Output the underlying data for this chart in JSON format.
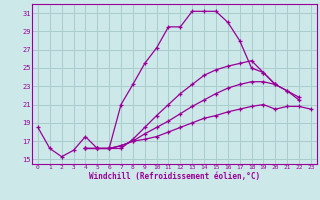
{
  "xlabel": "Windchill (Refroidissement éolien,°C)",
  "background_color": "#cce8e8",
  "line_color": "#990099",
  "grid_color": "#aacccc",
  "xlim": [
    -0.5,
    23.5
  ],
  "ylim": [
    14.5,
    32.0
  ],
  "yticks": [
    15,
    17,
    19,
    21,
    23,
    25,
    27,
    29,
    31
  ],
  "xticks": [
    0,
    1,
    2,
    3,
    4,
    5,
    6,
    7,
    8,
    9,
    10,
    11,
    12,
    13,
    14,
    15,
    16,
    17,
    18,
    19,
    20,
    21,
    22,
    23
  ],
  "series": [
    {
      "x": [
        0,
        1,
        2,
        3,
        4,
        5,
        6,
        7,
        8,
        9,
        10,
        11,
        12,
        13,
        14,
        15,
        16,
        17,
        18,
        19,
        20,
        21,
        22
      ],
      "y": [
        18.5,
        16.2,
        15.3,
        16.0,
        17.5,
        16.2,
        16.2,
        21.0,
        23.2,
        25.5,
        27.2,
        29.5,
        29.5,
        31.2,
        31.2,
        31.2,
        30.0,
        28.0,
        25.0,
        24.5,
        23.2,
        22.5,
        21.5
      ]
    },
    {
      "x": [
        4,
        5,
        6,
        7,
        8,
        9,
        10,
        11,
        12,
        13,
        14,
        15,
        16,
        17,
        18,
        19,
        20
      ],
      "y": [
        16.2,
        16.2,
        16.2,
        16.2,
        17.2,
        18.5,
        19.8,
        21.0,
        22.2,
        23.2,
        24.2,
        24.8,
        25.2,
        25.5,
        25.8,
        24.5,
        23.2
      ]
    },
    {
      "x": [
        4,
        5,
        6,
        7,
        8,
        9,
        10,
        11,
        12,
        13,
        14,
        15,
        16,
        17,
        18,
        19,
        20,
        21,
        22
      ],
      "y": [
        16.2,
        16.2,
        16.2,
        16.5,
        17.0,
        17.8,
        18.5,
        19.2,
        20.0,
        20.8,
        21.5,
        22.2,
        22.8,
        23.2,
        23.5,
        23.5,
        23.2,
        22.5,
        21.8
      ]
    },
    {
      "x": [
        4,
        5,
        6,
        7,
        8,
        9,
        10,
        11,
        12,
        13,
        14,
        15,
        16,
        17,
        18,
        19,
        20,
        21,
        22,
        23
      ],
      "y": [
        16.2,
        16.2,
        16.2,
        16.5,
        17.0,
        17.2,
        17.5,
        18.0,
        18.5,
        19.0,
        19.5,
        19.8,
        20.2,
        20.5,
        20.8,
        21.0,
        20.5,
        20.8,
        20.8,
        20.5
      ]
    }
  ]
}
